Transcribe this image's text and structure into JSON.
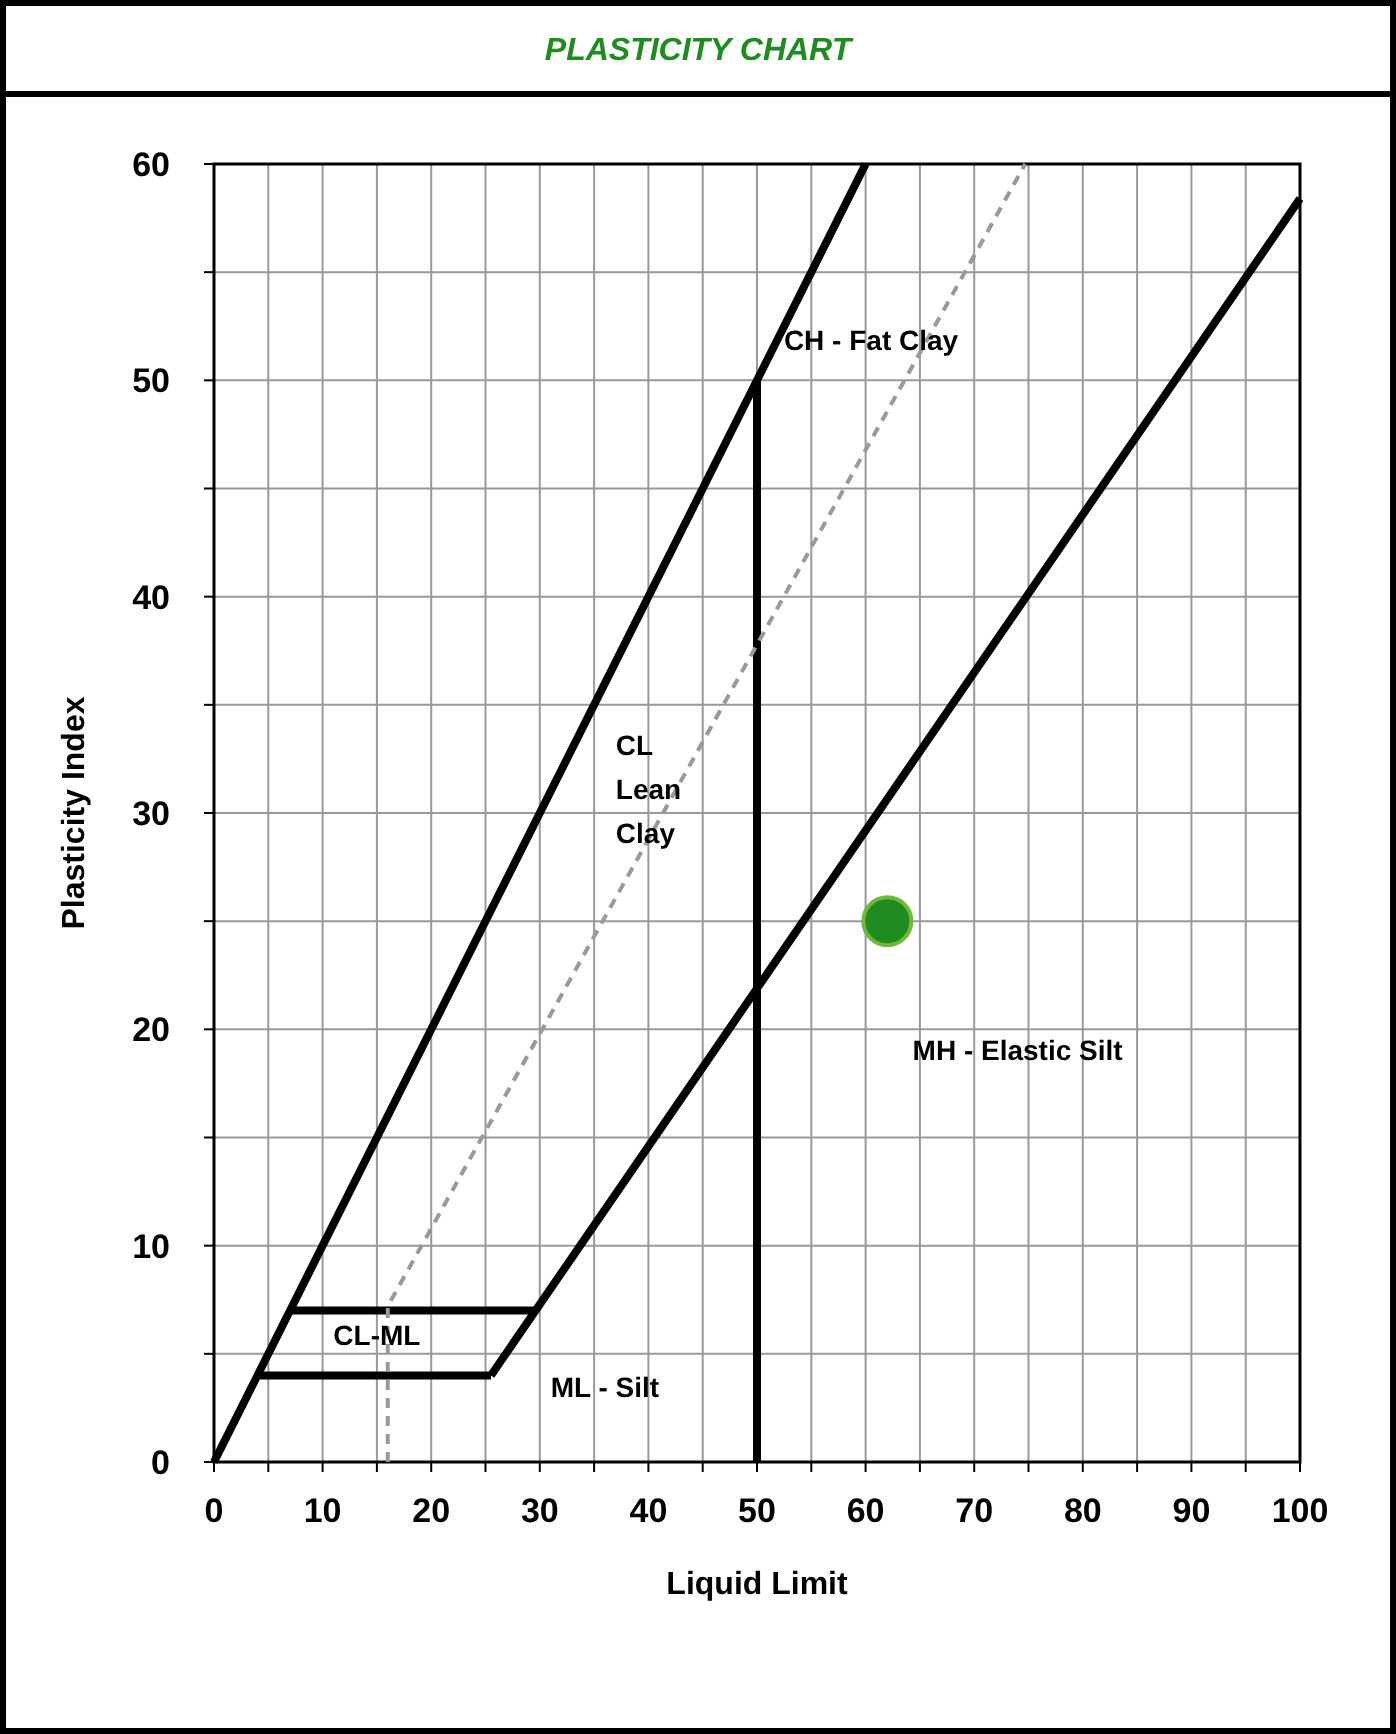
{
  "chart_data": {
    "type": "line",
    "title": "PLASTICITY CHART",
    "xlabel": "Liquid Limit",
    "ylabel": "Plasticity Index",
    "xlim": [
      0,
      100
    ],
    "ylim": [
      0,
      60
    ],
    "xticks": [
      0,
      {
        "value": 5,
        "label": null
      },
      10,
      {
        "value": 15,
        "label": null
      },
      20,
      {
        "value": 25,
        "label": null
      },
      30,
      {
        "value": 35,
        "label": null
      },
      40,
      {
        "value": 45,
        "label": null
      },
      50,
      {
        "value": 55,
        "label": null
      },
      60,
      {
        "value": 65,
        "label": null
      },
      70,
      {
        "value": 75,
        "label": null
      },
      80,
      {
        "value": 85,
        "label": null
      },
      90,
      {
        "value": 95,
        "label": null
      },
      100
    ],
    "yticks": [
      0,
      {
        "value": 5,
        "label": null
      },
      10,
      {
        "value": 15,
        "label": null
      },
      20,
      {
        "value": 25,
        "label": null
      },
      30,
      {
        "value": 35,
        "label": null
      },
      40,
      {
        "value": 45,
        "label": null
      },
      50,
      {
        "value": 55,
        "label": null
      },
      60
    ],
    "grid": true,
    "series": [
      {
        "color": "#000000",
        "line_style": "solid",
        "x": [
          0,
          60
        ],
        "values": [
          0,
          60
        ]
      },
      {
        "color": "#000000",
        "line_style": "solid",
        "x": [
          25.5,
          100
        ],
        "values": [
          4,
          58.4
        ]
      },
      {
        "color": "#000000",
        "line_style": "solid",
        "x": [
          50,
          50
        ],
        "values": [
          0,
          50
        ]
      },
      {
        "color": "#000000",
        "line_style": "solid",
        "x": [
          4,
          25.5
        ],
        "values": [
          4,
          4
        ]
      },
      {
        "color": "#000000",
        "line_style": "solid",
        "x": [
          7,
          29.6
        ],
        "values": [
          7,
          7
        ]
      },
      {
        "color": "#999999",
        "line_style": "dashed",
        "x": [
          16,
          16,
          74.7
        ],
        "values": [
          0,
          7.2,
          60
        ]
      },
      {
        "type": "scatter",
        "color": "#1e8c1e",
        "marker": "circle",
        "x": [
          62
        ],
        "values": [
          25
        ]
      }
    ],
    "annotations": [
      "CH  - Fat Clay",
      "CL\nLean\nClay",
      "CL-ML",
      "ML - Silt",
      "MH - Elastic Silt"
    ]
  }
}
